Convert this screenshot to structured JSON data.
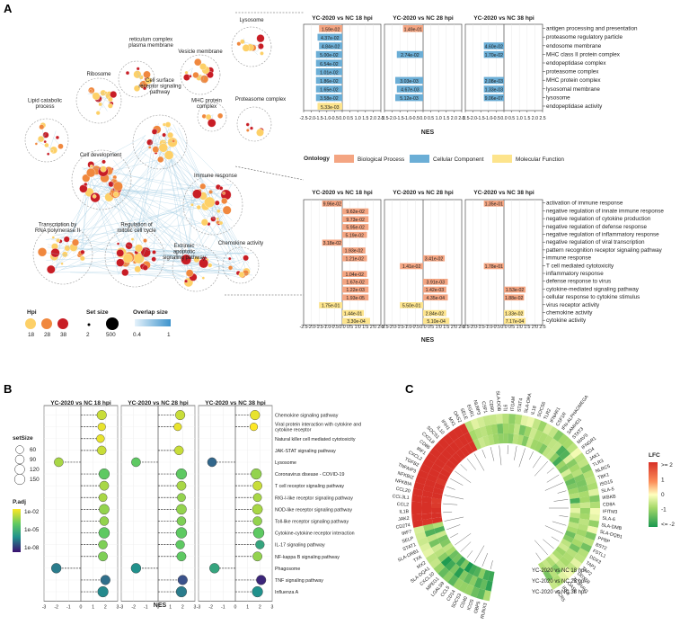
{
  "panels": {
    "a": "A",
    "b": "B",
    "c": "C"
  },
  "colors": {
    "bp": "#f4a582",
    "cc": "#6baed6",
    "mf": "#fde48c",
    "hpi18": "#fdd067",
    "hpi28": "#f0883e",
    "hpi38": "#c81d25",
    "edge": "#9ecae1"
  },
  "panelA": {
    "network": {
      "clusters": [
        {
          "label": "Lysosome"
        },
        {
          "label": "reticulum complex plasma membrane"
        },
        {
          "label": "Vesicle membrane"
        },
        {
          "label": "Ribosome"
        },
        {
          "label": "Cell surface receptor signaling pathway"
        },
        {
          "label": "MHC protein complex"
        },
        {
          "label": "Proteasome complex"
        },
        {
          "label": "Lipid catabolic process"
        },
        {
          "label": "Cell development"
        },
        {
          "label": "Immune response"
        },
        {
          "label": "Transcription by RNA polymerase II"
        },
        {
          "label": "Regulation of mitotic cell cycle"
        },
        {
          "label": "Extrinsic apoptotic signaling pathway"
        },
        {
          "label": "Chemokine activity"
        }
      ],
      "legend": {
        "hpi_title": "Hpi",
        "hpi_values": [
          "18",
          "28",
          "38"
        ],
        "setsize_title": "Set size",
        "setsize_values": [
          "2",
          "500"
        ],
        "overlap_title": "Overlap size",
        "overlap_values": [
          "0.4",
          "1"
        ]
      }
    },
    "bar_headers": [
      "YC-2020 vs NC 18 hpi",
      "YC-2020 vs NC 28 hpi",
      "YC-2020 vs NC 38 hpi"
    ],
    "ontology": {
      "title": "Ontology",
      "items": [
        {
          "label": "Biological Process"
        },
        {
          "label": "Cellular Component"
        },
        {
          "label": "Molecular Function"
        }
      ]
    },
    "xlabel": "NES",
    "xticks": [
      "-2.5",
      "-2.0",
      "-1.5",
      "-1.0",
      "-0.5",
      "0.0",
      "0.5",
      "1.0",
      "1.5",
      "2.0",
      "2.5"
    ],
    "top_terms": [
      "antigen processing and presentation",
      "proteasome regulatory particle",
      "endosome membrane",
      "MHC class II protein complex",
      "endopeptidase complex",
      "proteasome complex",
      "MHC protein complex",
      "lysosomal membrane",
      "lysosome",
      "endopeptidase activity"
    ],
    "bottom_terms": [
      "activation of immune response",
      "negative regulation of innate immune response",
      "negative regulation of cytokine production",
      "negative regulation of defense response",
      "negative regulation of inflammatory response",
      "negative regulation of viral transcription",
      "pattern recognition receptor signaling pathway",
      "immune response",
      "T cell mediated cytotoxicity",
      "inflammatory response",
      "defense response to virus",
      "cytokine-mediated signaling pathway",
      "cellular response to cytokine stimulus",
      "virus receptor activity",
      "chemokine activity",
      "cytokine activity"
    ]
  },
  "chart_data": [
    {
      "type": "bar",
      "id": "A-top",
      "xlabel": "NES",
      "xlim": [
        -2.5,
        2.5
      ],
      "categories": [
        "antigen processing and presentation",
        "proteasome regulatory particle",
        "endosome membrane",
        "MHC class II protein complex",
        "endopeptidase complex",
        "proteasome complex",
        "MHC protein complex",
        "lysosomal membrane",
        "lysosome",
        "endopeptidase activity"
      ],
      "series": [
        {
          "name": "YC-2020 vs NC 18 hpi",
          "values": [
            -1.5,
            -1.6,
            -1.5,
            -1.7,
            -1.7,
            -1.7,
            -1.7,
            -1.7,
            -1.7,
            -1.6
          ],
          "labels": [
            "1.59e-02",
            "4.37e-02",
            "4.84e-02",
            "5.00e-02",
            "6.54e-02",
            "1.01e-02",
            "1.86e-02",
            "1.65e-02",
            "3.58e-02",
            "5.33e-03"
          ],
          "ontology": [
            "bp",
            "cc",
            "cc",
            "cc",
            "cc",
            "cc",
            "cc",
            "cc",
            "cc",
            "mf"
          ]
        },
        {
          "name": "YC-2020 vs NC 28 hpi",
          "values": [
            -1.3,
            0,
            0,
            -1.7,
            0,
            0,
            -1.8,
            -1.7,
            -1.8,
            0
          ],
          "labels": [
            "1.49e-01",
            "",
            "",
            "2.74e-02",
            "",
            "",
            "3.03e-03",
            "4.67e-03",
            "5.12e-03",
            ""
          ],
          "ontology": [
            "bp",
            "",
            "",
            "cc",
            "",
            "",
            "cc",
            "cc",
            "cc",
            ""
          ]
        },
        {
          "name": "YC-2020 vs NC 38 hpi",
          "values": [
            0,
            0,
            -1.3,
            -1.3,
            0,
            0,
            -1.3,
            -1.3,
            -1.3,
            0
          ],
          "labels": [
            "",
            "",
            "4.60e-02",
            "1.70e-02",
            "",
            "",
            "2.08e-03",
            "1.33e-03",
            "9.06e-07",
            ""
          ],
          "ontology": [
            "",
            "",
            "cc",
            "cc",
            "",
            "",
            "cc",
            "cc",
            "cc",
            ""
          ]
        }
      ]
    },
    {
      "type": "bar",
      "id": "A-bottom",
      "xlabel": "NES",
      "xlim": [
        -2.5,
        2.5
      ],
      "categories": [
        "activation of immune response",
        "negative regulation of innate immune response",
        "negative regulation of cytokine production",
        "negative regulation of defense response",
        "negative regulation of inflammatory response",
        "negative regulation of viral transcription",
        "pattern recognition receptor signaling pathway",
        "immune response",
        "T cell mediated cytotoxicity",
        "inflammatory response",
        "defense response to virus",
        "cytokine-mediated signaling pathway",
        "cellular response to cytokine stimulus",
        "virus receptor activity",
        "chemokine activity",
        "cytokine activity"
      ],
      "series": [
        {
          "name": "YC-2020 vs NC 18 hpi",
          "values": [
            -1.3,
            1.7,
            1.7,
            1.7,
            1.6,
            -1.3,
            1.5,
            1.6,
            0,
            1.6,
            1.7,
            1.7,
            1.7,
            -1.5,
            1.4,
            1.8
          ],
          "labels": [
            "9.96e-02",
            "9.62e-02",
            "9.73e-02",
            "5.95e-02",
            "5.19e-02",
            "3.18e-02",
            "1.93e-02",
            "1.21e-02",
            "",
            "1.04e-02",
            "1.67e-02",
            "1.22e-03",
            "1.93e-05",
            "1.75e-01",
            "1.44e-01",
            "3.30e-04"
          ],
          "ontology": [
            "bp",
            "bp",
            "bp",
            "bp",
            "bp",
            "bp",
            "bp",
            "bp",
            "",
            "bp",
            "bp",
            "bp",
            "bp",
            "mf",
            "mf",
            "mf"
          ]
        },
        {
          "name": "YC-2020 vs NC 28 hpi",
          "values": [
            0,
            0,
            0,
            0,
            0,
            0,
            0,
            1.4,
            -1.5,
            0,
            1.6,
            1.5,
            1.6,
            -1.5,
            1.5,
            1.7
          ],
          "labels": [
            "",
            "",
            "",
            "",
            "",
            "",
            "",
            "3.41e-02",
            "1.41e-02",
            "",
            "3.91e-03",
            "1.42e-03",
            "4.35e-04",
            "5.50e-01",
            "2.84e-02",
            "5.10e-04"
          ],
          "ontology": [
            "",
            "",
            "",
            "",
            "",
            "",
            "",
            "bp",
            "bp",
            "",
            "bp",
            "bp",
            "bp",
            "mf",
            "mf",
            "mf"
          ]
        },
        {
          "name": "YC-2020 vs NC 38 hpi",
          "values": [
            -1.3,
            0,
            0,
            0,
            0,
            0,
            0,
            0,
            -1.3,
            0,
            0,
            1.4,
            1.3,
            0,
            1.3,
            1.4
          ],
          "labels": [
            "1.35e-01",
            "",
            "",
            "",
            "",
            "",
            "",
            "",
            "1.78e-01",
            "",
            "",
            "1.53e-02",
            "1.88e-02",
            "",
            "1.33e-02",
            "7.17e-04"
          ],
          "ontology": [
            "bp",
            "",
            "",
            "",
            "",
            "",
            "",
            "",
            "bp",
            "",
            "",
            "bp",
            "bp",
            "",
            "mf",
            "mf"
          ]
        }
      ]
    },
    {
      "type": "scatter",
      "id": "B",
      "xlabel": "NES",
      "xlim": [
        -3,
        3
      ],
      "xticks": [
        -3,
        -2,
        -1,
        0,
        1,
        2,
        3
      ],
      "categories": [
        "Chemokine signaling pathway",
        "Viral protein interaction with cytokine and cytokine receptor",
        "Natural killer cell mediated cytotoxicity",
        "JAK-STAT signaling pathway",
        "Lysosome",
        "Coronavirus disease - COVID-19",
        "T cell receptor signaling pathway",
        "RIG-I-like receptor signaling pathway",
        "NOD-like receptor signaling pathway",
        "Toll-like receptor signaling pathway",
        "Cytokine-cytokine receptor interaction",
        "IL-17 signaling pathway",
        "NF-kappa B signaling pathway",
        "Phagosome",
        "TNF signaling pathway",
        "Influenza A"
      ],
      "series": [
        {
          "name": "YC-2020 vs NC 18 hpi",
          "nes": [
            1.7,
            1.7,
            1.6,
            1.7,
            -1.8,
            1.9,
            1.9,
            1.8,
            1.9,
            1.9,
            1.9,
            1.8,
            1.8,
            -2.0,
            2.0,
            1.8
          ],
          "setSize": [
            110,
            55,
            60,
            90,
            95,
            150,
            100,
            70,
            130,
            90,
            160,
            85,
            100,
            120,
            110,
            150
          ],
          "padj": [
            -2.5,
            -2.2,
            -2.2,
            -2.5,
            -2.8,
            -3.5,
            -2.8,
            -2.8,
            -3.0,
            -3.0,
            -3.5,
            -3.2,
            -3.2,
            -5.5,
            -5.8,
            -5.2
          ]
        },
        {
          "name": "YC-2020 vs NC 28 hpi",
          "nes": [
            1.8,
            1.6,
            0,
            1.7,
            -1.8,
            1.9,
            1.9,
            1.9,
            1.9,
            1.9,
            1.9,
            1.8,
            1.9,
            -1.8,
            2.0,
            1.9
          ],
          "setSize": [
            110,
            55,
            0,
            90,
            95,
            150,
            100,
            70,
            130,
            90,
            160,
            85,
            100,
            120,
            110,
            150
          ],
          "padj": [
            -2.5,
            -2.2,
            0,
            -2.5,
            -3.5,
            -3.5,
            -2.8,
            -3.0,
            -3.0,
            -3.2,
            -3.5,
            -3.5,
            -3.5,
            -5.0,
            -6.5,
            -5.5
          ]
        },
        {
          "name": "YC-2020 vs NC 38 hpi",
          "nes": [
            1.6,
            1.5,
            0,
            0,
            -1.9,
            1.7,
            1.8,
            1.8,
            1.8,
            1.8,
            1.9,
            2.0,
            1.8,
            -1.7,
            2.1,
            1.8
          ],
          "setSize": [
            110,
            55,
            0,
            0,
            95,
            150,
            100,
            70,
            130,
            90,
            160,
            85,
            100,
            120,
            110,
            150
          ],
          "padj": [
            -2.2,
            -2.0,
            0,
            0,
            -6.0,
            -3.0,
            -2.5,
            -2.8,
            -2.8,
            -3.0,
            -3.5,
            -4.5,
            -3.0,
            -4.5,
            -7.5,
            -5.0
          ]
        }
      ],
      "setSize_legend": {
        "title": "setSize",
        "values": [
          60,
          90,
          120,
          150
        ]
      },
      "padj_legend": {
        "title": "P.adj",
        "labels": [
          "1e-02",
          "1e-05",
          "1e-08"
        ]
      }
    },
    {
      "type": "heatmap",
      "id": "C",
      "rings": [
        "YC-2020 vs NC 18 hpi",
        "YC-2020 vs NC 28 hpi",
        "YC-2020 vs NC 38 hpi"
      ],
      "genes": [
        "RUNX3",
        "GBP5",
        "ICOS",
        "CD40",
        "SOCS3",
        "CD14",
        "CCL5",
        "LGALS9",
        "MPEG1",
        "CXCL10",
        "SLA-DQA1",
        "MX2",
        "TXK",
        "SLA-DRB1",
        "STAT1",
        "SELP",
        "IRF7",
        "CD274",
        "JAK2",
        "IL1B",
        "CCL2",
        "CCL3L1",
        "CCL20",
        "NFKBIA",
        "NFKBIZ",
        "TNFAIP3",
        "TGFB2",
        "CXCL2",
        "IRF1",
        "CD86",
        "CXCL8",
        "SOCS1",
        "IL10",
        "IFIH1",
        "MX1",
        "OAS2",
        "SELE",
        "EGR1",
        "NLRP3",
        "CSF1",
        "CD80",
        "SLA-DOB",
        "IL6",
        "ITGAM",
        "STAT4",
        "SLA-DRA",
        "IL18",
        "SOCS6",
        "TLR2",
        "IFNAR1",
        "CSF1R",
        "IFN-ALPHAOMEGA",
        "SAMHD1",
        "STAT3",
        "MAVS",
        "IFNGR1",
        "CD4",
        "JAK1",
        "TLR3",
        "NLRC5",
        "TBK1",
        "ISG15",
        "SLA-5",
        "IKBKB",
        "CD8A",
        "IFITM3",
        "SLA-6",
        "SLA-DMB",
        "SLA-DQB1",
        "PPBP",
        "BST2",
        "FSTL1",
        "DDX3",
        "TAP1",
        "TAP2",
        "DDX58",
        "ZC3HAV1",
        "OASL",
        "IRF9",
        "CCR5"
      ],
      "lfc_legend": {
        "title": "LFC",
        "labels": [
          ">= 2",
          "1",
          "0",
          "-1",
          "<= -2"
        ]
      }
    }
  ]
}
